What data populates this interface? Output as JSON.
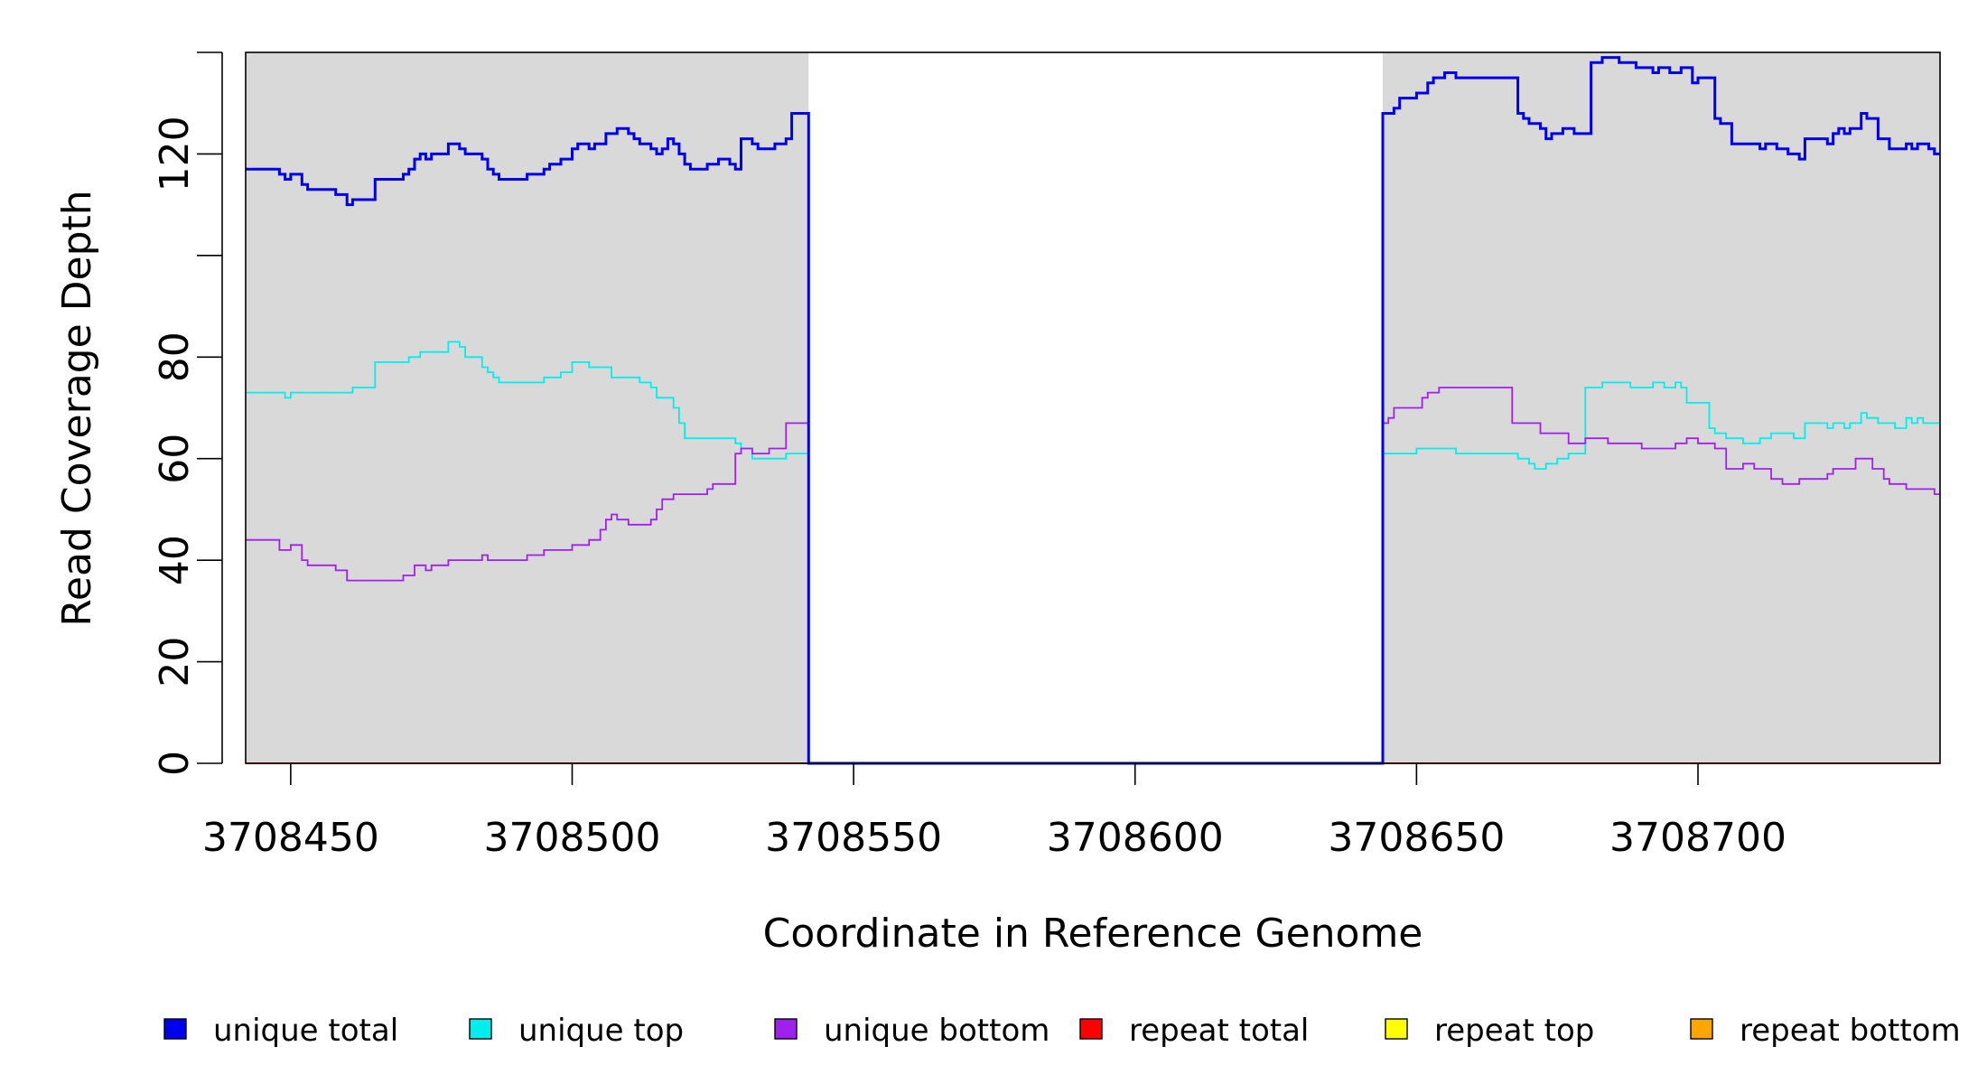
{
  "chart_data": {
    "type": "line",
    "title": "",
    "xlabel": "Coordinate in Reference Genome",
    "ylabel": "Read Coverage Depth",
    "xlim": [
      3708442,
      3708743
    ],
    "ylim": [
      0,
      140
    ],
    "x_ticks": [
      3708450,
      3708500,
      3708550,
      3708600,
      3708650,
      3708700
    ],
    "y_ticks": [
      0,
      20,
      40,
      60,
      80,
      100,
      120,
      140
    ],
    "y_tick_labels": [
      "0",
      "20",
      "40",
      "60",
      "80",
      "",
      "120",
      ""
    ],
    "shaded_regions": [
      {
        "from": 3708442,
        "to": 3708542,
        "color": "#d9d9d9"
      },
      {
        "from": 3708644,
        "to": 3708743,
        "color": "#d9d9d9"
      }
    ],
    "legend_position": "bottom",
    "series": [
      {
        "name": "unique total",
        "color": "#0000ee",
        "step": true,
        "points": [
          [
            3708442,
            117
          ],
          [
            3708448,
            116
          ],
          [
            3708449,
            115
          ],
          [
            3708450,
            116
          ],
          [
            3708452,
            114
          ],
          [
            3708453,
            113
          ],
          [
            3708458,
            112
          ],
          [
            3708460,
            110
          ],
          [
            3708461,
            111
          ],
          [
            3708465,
            115
          ],
          [
            3708470,
            116
          ],
          [
            3708471,
            117
          ],
          [
            3708472,
            119
          ],
          [
            3708473,
            120
          ],
          [
            3708474,
            119
          ],
          [
            3708475,
            120
          ],
          [
            3708478,
            122
          ],
          [
            3708480,
            121
          ],
          [
            3708481,
            120
          ],
          [
            3708484,
            119
          ],
          [
            3708485,
            117
          ],
          [
            3708486,
            116
          ],
          [
            3708487,
            115
          ],
          [
            3708492,
            116
          ],
          [
            3708495,
            117
          ],
          [
            3708496,
            118
          ],
          [
            3708498,
            119
          ],
          [
            3708500,
            121
          ],
          [
            3708501,
            122
          ],
          [
            3708503,
            121
          ],
          [
            3708504,
            122
          ],
          [
            3708506,
            124
          ],
          [
            3708508,
            125
          ],
          [
            3708510,
            124
          ],
          [
            3708511,
            123
          ],
          [
            3708512,
            122
          ],
          [
            3708514,
            121
          ],
          [
            3708515,
            120
          ],
          [
            3708516,
            121
          ],
          [
            3708517,
            123
          ],
          [
            3708518,
            122
          ],
          [
            3708519,
            120
          ],
          [
            3708520,
            118
          ],
          [
            3708521,
            117
          ],
          [
            3708524,
            118
          ],
          [
            3708526,
            119
          ],
          [
            3708528,
            118
          ],
          [
            3708529,
            117
          ],
          [
            3708530,
            123
          ],
          [
            3708532,
            122
          ],
          [
            3708533,
            121
          ],
          [
            3708536,
            122
          ],
          [
            3708538,
            123
          ],
          [
            3708539,
            128
          ],
          [
            3708541,
            128
          ],
          [
            3708542,
            0
          ],
          [
            3708643,
            0
          ],
          [
            3708644,
            128
          ],
          [
            3708646,
            129
          ],
          [
            3708647,
            131
          ],
          [
            3708650,
            132
          ],
          [
            3708652,
            134
          ],
          [
            3708653,
            135
          ],
          [
            3708655,
            136
          ],
          [
            3708657,
            135
          ],
          [
            3708668,
            128
          ],
          [
            3708669,
            127
          ],
          [
            3708670,
            126
          ],
          [
            3708672,
            125
          ],
          [
            3708673,
            123
          ],
          [
            3708674,
            124
          ],
          [
            3708676,
            125
          ],
          [
            3708678,
            124
          ],
          [
            3708681,
            138
          ],
          [
            3708683,
            139
          ],
          [
            3708686,
            138
          ],
          [
            3708689,
            137
          ],
          [
            3708692,
            136
          ],
          [
            3708693,
            137
          ],
          [
            3708695,
            136
          ],
          [
            3708697,
            137
          ],
          [
            3708699,
            134
          ],
          [
            3708700,
            135
          ],
          [
            3708703,
            127
          ],
          [
            3708704,
            126
          ],
          [
            3708706,
            122
          ],
          [
            3708711,
            121
          ],
          [
            3708712,
            122
          ],
          [
            3708714,
            121
          ],
          [
            3708716,
            120
          ],
          [
            3708718,
            119
          ],
          [
            3708719,
            123
          ],
          [
            3708723,
            122
          ],
          [
            3708724,
            124
          ],
          [
            3708725,
            125
          ],
          [
            3708726,
            124
          ],
          [
            3708727,
            125
          ],
          [
            3708729,
            128
          ],
          [
            3708730,
            127
          ],
          [
            3708732,
            123
          ],
          [
            3708734,
            121
          ],
          [
            3708737,
            122
          ],
          [
            3708738,
            121
          ],
          [
            3708739,
            122
          ],
          [
            3708741,
            121
          ],
          [
            3708742,
            120
          ],
          [
            3708743,
            120
          ]
        ]
      },
      {
        "name": "unique top",
        "color": "#00eeee",
        "step": true,
        "points": [
          [
            3708442,
            73
          ],
          [
            3708449,
            72
          ],
          [
            3708450,
            73
          ],
          [
            3708461,
            74
          ],
          [
            3708465,
            79
          ],
          [
            3708471,
            80
          ],
          [
            3708473,
            81
          ],
          [
            3708478,
            83
          ],
          [
            3708480,
            82
          ],
          [
            3708481,
            80
          ],
          [
            3708484,
            78
          ],
          [
            3708485,
            77
          ],
          [
            3708486,
            76
          ],
          [
            3708487,
            75
          ],
          [
            3708495,
            76
          ],
          [
            3708498,
            77
          ],
          [
            3708500,
            79
          ],
          [
            3708503,
            78
          ],
          [
            3708507,
            76
          ],
          [
            3708512,
            75
          ],
          [
            3708514,
            74
          ],
          [
            3708515,
            72
          ],
          [
            3708518,
            70
          ],
          [
            3708519,
            67
          ],
          [
            3708520,
            64
          ],
          [
            3708524,
            64
          ],
          [
            3708529,
            63
          ],
          [
            3708530,
            62
          ],
          [
            3708532,
            60
          ],
          [
            3708538,
            61
          ],
          [
            3708541,
            61
          ],
          [
            3708542,
            0
          ],
          [
            3708643,
            0
          ],
          [
            3708644,
            61
          ],
          [
            3708650,
            62
          ],
          [
            3708657,
            61
          ],
          [
            3708668,
            60
          ],
          [
            3708670,
            59
          ],
          [
            3708671,
            58
          ],
          [
            3708673,
            59
          ],
          [
            3708675,
            60
          ],
          [
            3708677,
            61
          ],
          [
            3708680,
            74
          ],
          [
            3708683,
            75
          ],
          [
            3708688,
            74
          ],
          [
            3708692,
            75
          ],
          [
            3708694,
            74
          ],
          [
            3708696,
            75
          ],
          [
            3708697,
            74
          ],
          [
            3708698,
            71
          ],
          [
            3708702,
            66
          ],
          [
            3708703,
            65
          ],
          [
            3708705,
            64
          ],
          [
            3708708,
            63
          ],
          [
            3708711,
            64
          ],
          [
            3708713,
            65
          ],
          [
            3708717,
            64
          ],
          [
            3708719,
            67
          ],
          [
            3708723,
            66
          ],
          [
            3708724,
            67
          ],
          [
            3708726,
            66
          ],
          [
            3708727,
            67
          ],
          [
            3708729,
            69
          ],
          [
            3708730,
            68
          ],
          [
            3708732,
            67
          ],
          [
            3708735,
            66
          ],
          [
            3708737,
            68
          ],
          [
            3708738,
            67
          ],
          [
            3708739,
            68
          ],
          [
            3708740,
            67
          ],
          [
            3708743,
            67
          ]
        ]
      },
      {
        "name": "unique bottom",
        "color": "#a020f0",
        "step": true,
        "points": [
          [
            3708442,
            44
          ],
          [
            3708448,
            42
          ],
          [
            3708450,
            43
          ],
          [
            3708452,
            40
          ],
          [
            3708453,
            39
          ],
          [
            3708458,
            38
          ],
          [
            3708460,
            36
          ],
          [
            3708470,
            37
          ],
          [
            3708472,
            39
          ],
          [
            3708474,
            38
          ],
          [
            3708475,
            39
          ],
          [
            3708478,
            40
          ],
          [
            3708484,
            41
          ],
          [
            3708485,
            40
          ],
          [
            3708492,
            41
          ],
          [
            3708495,
            42
          ],
          [
            3708500,
            43
          ],
          [
            3708503,
            44
          ],
          [
            3708505,
            46
          ],
          [
            3708506,
            48
          ],
          [
            3708507,
            49
          ],
          [
            3708508,
            48
          ],
          [
            3708510,
            47
          ],
          [
            3708514,
            48
          ],
          [
            3708515,
            50
          ],
          [
            3708516,
            52
          ],
          [
            3708518,
            53
          ],
          [
            3708524,
            54
          ],
          [
            3708525,
            55
          ],
          [
            3708529,
            61
          ],
          [
            3708530,
            62
          ],
          [
            3708532,
            61
          ],
          [
            3708535,
            62
          ],
          [
            3708538,
            67
          ],
          [
            3708541,
            67
          ],
          [
            3708542,
            0
          ],
          [
            3708643,
            0
          ],
          [
            3708644,
            67
          ],
          [
            3708645,
            68
          ],
          [
            3708646,
            70
          ],
          [
            3708651,
            72
          ],
          [
            3708652,
            73
          ],
          [
            3708654,
            74
          ],
          [
            3708667,
            67
          ],
          [
            3708672,
            65
          ],
          [
            3708677,
            63
          ],
          [
            3708680,
            64
          ],
          [
            3708684,
            63
          ],
          [
            3708690,
            62
          ],
          [
            3708696,
            63
          ],
          [
            3708698,
            64
          ],
          [
            3708700,
            63
          ],
          [
            3708703,
            62
          ],
          [
            3708705,
            58
          ],
          [
            3708708,
            59
          ],
          [
            3708710,
            58
          ],
          [
            3708713,
            56
          ],
          [
            3708715,
            55
          ],
          [
            3708718,
            56
          ],
          [
            3708723,
            57
          ],
          [
            3708724,
            58
          ],
          [
            3708728,
            60
          ],
          [
            3708731,
            58
          ],
          [
            3708733,
            56
          ],
          [
            3708734,
            55
          ],
          [
            3708737,
            54
          ],
          [
            3708742,
            53
          ],
          [
            3708743,
            53
          ]
        ]
      },
      {
        "name": "repeat total",
        "color": "#ff0000",
        "step": true,
        "points": [
          [
            3708442,
            0
          ],
          [
            3708743,
            0
          ]
        ]
      },
      {
        "name": "repeat top",
        "color": "#ffff00",
        "step": true,
        "points": [
          [
            3708442,
            0
          ],
          [
            3708743,
            0
          ]
        ]
      },
      {
        "name": "repeat bottom",
        "color": "#ffa500",
        "step": true,
        "points": [
          [
            3708442,
            0
          ],
          [
            3708743,
            0
          ]
        ]
      }
    ]
  }
}
